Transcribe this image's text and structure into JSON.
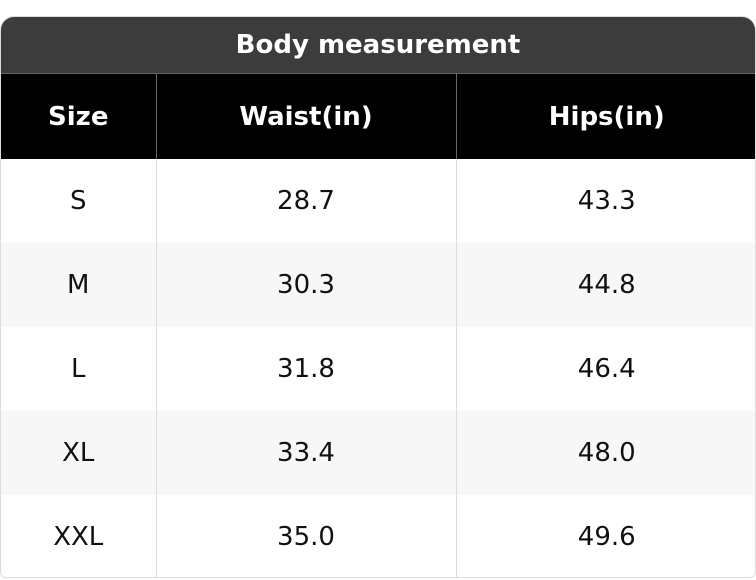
{
  "title": "Body measurement",
  "table": {
    "header": [
      "Size",
      "Waist(in)",
      "Hips(in)"
    ],
    "rows": [
      [
        "S",
        "28.7",
        "43.3"
      ],
      [
        "M",
        "30.3",
        "44.8"
      ],
      [
        "L",
        "31.8",
        "46.4"
      ],
      [
        "XL",
        "33.4",
        "48.0"
      ],
      [
        "XXL",
        "35.0",
        "49.6"
      ]
    ]
  }
}
